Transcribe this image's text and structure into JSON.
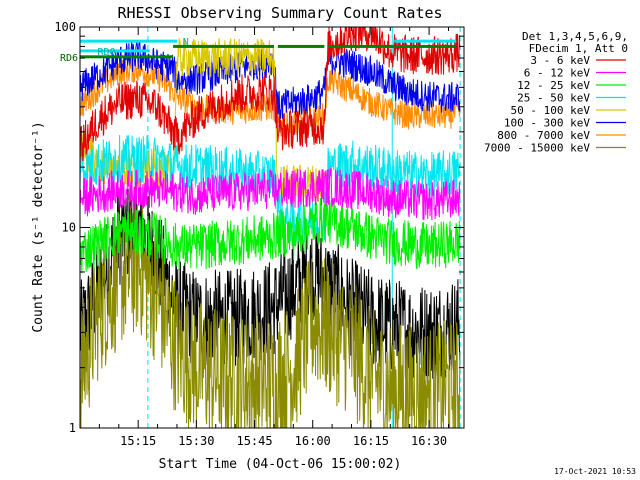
{
  "chart_data": {
    "type": "line",
    "title": "RHESSI Observing Summary Count Rates",
    "xlabel": "Start Time (04-Oct-06 15:00:02)",
    "ylabel": "Count Rate (s⁻¹ detector⁻¹)",
    "yscale": "log",
    "ylim": [
      1,
      100
    ],
    "xlim_minutes": [
      0,
      99
    ],
    "x_ticks": [
      {
        "t": 15,
        "label": "15:15"
      },
      {
        "t": 30,
        "label": "15:30"
      },
      {
        "t": 45,
        "label": "15:45"
      },
      {
        "t": 60,
        "label": "16:00"
      },
      {
        "t": 75,
        "label": "16:15"
      },
      {
        "t": 90,
        "label": "16:30"
      }
    ],
    "y_ticks": [
      {
        "v": 1,
        "label": "1"
      },
      {
        "v": 10,
        "label": "10"
      },
      {
        "v": 100,
        "label": "100"
      }
    ],
    "legend": {
      "position": "right",
      "header": [
        "Det 1,3,4,5,6,9,",
        "FDecim 1, Att 0"
      ]
    },
    "series": [
      {
        "name": "3 - 6 keV",
        "color": "#e00000",
        "x": [
          0,
          5,
          10,
          15,
          20,
          24,
          25,
          30,
          40,
          50,
          51,
          55,
          60,
          63,
          64,
          70,
          75,
          80,
          85,
          90,
          95,
          98
        ],
        "y": [
          25,
          35,
          42,
          44,
          40,
          30,
          28,
          36,
          46,
          48,
          30,
          31,
          32,
          32,
          80,
          95,
          95,
          75,
          72,
          72,
          72,
          75
        ]
      },
      {
        "name": "6 - 12 keV",
        "color": "#ff00ff",
        "x": [
          0,
          10,
          20,
          25,
          30,
          40,
          50,
          52,
          55,
          60,
          63,
          64,
          70,
          75,
          80,
          90,
          98
        ],
        "y": [
          14,
          15.5,
          15.5,
          15,
          14.5,
          15,
          15.5,
          15.5,
          15.5,
          16,
          16,
          16,
          15.5,
          15,
          14,
          13.5,
          14
        ]
      },
      {
        "name": "12 - 25 keV",
        "color": "#00ee00",
        "x": [
          0,
          10,
          20,
          25,
          30,
          40,
          50,
          52,
          55,
          60,
          63,
          64,
          70,
          75,
          80,
          90,
          98
        ],
        "y": [
          7.5,
          9.5,
          9,
          8,
          8,
          8.5,
          9,
          9.5,
          9,
          10.5,
          11,
          11,
          10,
          9,
          8.5,
          8,
          8.5
        ]
      },
      {
        "name": "25 - 50 keV",
        "color": "#00e5ee",
        "x": [
          0,
          10,
          20,
          25,
          30,
          40,
          50,
          52,
          55,
          60,
          63,
          64,
          70,
          75,
          80,
          90,
          98
        ],
        "y": [
          20,
          22,
          22,
          20,
          20,
          19,
          18,
          11,
          11,
          11,
          11,
          20,
          21,
          20,
          19,
          18,
          19
        ]
      },
      {
        "name": "50 - 100 keV",
        "color": "#d9c700",
        "x": [
          0,
          5,
          10,
          15,
          20,
          24,
          25,
          50,
          51,
          52,
          55,
          60,
          63
        ],
        "y": [
          26,
          20,
          20,
          19,
          20,
          18,
          70,
          70,
          16,
          16.5,
          16.5,
          16.5,
          16.5
        ]
      },
      {
        "name": "100 - 300 keV",
        "color": "#0000ee",
        "x": [
          0,
          5,
          10,
          15,
          20,
          24,
          25,
          30,
          40,
          50,
          51,
          55,
          60,
          63,
          64,
          70,
          75,
          80,
          85,
          90,
          95,
          98
        ],
        "y": [
          50,
          58,
          68,
          72,
          65,
          62,
          55,
          55,
          62,
          68,
          40,
          42,
          44,
          48,
          70,
          65,
          60,
          52,
          47,
          45,
          44,
          45
        ]
      },
      {
        "name": "800 - 7000 keV",
        "color": "#ff8c00",
        "x": [
          0,
          5,
          10,
          15,
          20,
          24,
          25,
          30,
          40,
          50,
          51,
          55,
          60,
          63,
          64,
          70,
          75,
          80,
          85,
          90,
          95,
          98
        ],
        "y": [
          40,
          50,
          60,
          62,
          56,
          48,
          45,
          40,
          38,
          40,
          32,
          33,
          34,
          36,
          55,
          48,
          42,
          38,
          36,
          36,
          36,
          38
        ]
      },
      {
        "name": "7000 - 15000 keV",
        "color": "#8b8b00",
        "x": [
          0,
          5,
          10,
          15,
          20,
          25,
          30,
          40,
          50,
          55,
          60,
          65,
          70,
          75,
          80,
          90,
          98
        ],
        "y": [
          1.8,
          4,
          5.5,
          6.5,
          4.5,
          2.5,
          2,
          1.7,
          1.7,
          2,
          3.5,
          3,
          2.5,
          1.8,
          1.6,
          1.5,
          1.6
        ]
      },
      {
        "name": "",
        "color": "#000000",
        "x": [
          0,
          5,
          10,
          15,
          20,
          25,
          30,
          40,
          50,
          55,
          60,
          65,
          70,
          75,
          80,
          90,
          98
        ],
        "y": [
          3,
          5,
          9,
          10,
          7,
          4,
          3.5,
          3.5,
          4,
          5,
          6,
          5,
          4,
          3.5,
          3.2,
          3,
          3.3
        ]
      }
    ],
    "flag_bars": [
      {
        "label": "N",
        "color": "#00e5ee",
        "segments": [
          [
            0,
            25
          ],
          [
            81,
            97
          ]
        ]
      },
      {
        "label": "RD0",
        "color": "#00e5ee",
        "segments": [
          [
            0,
            18
          ]
        ]
      },
      {
        "label": "RD6",
        "color": "#008000",
        "segments": [
          [
            0,
            24
          ]
        ]
      },
      {
        "label": "",
        "color": "#008000",
        "segments": [
          [
            24,
            50
          ],
          [
            51,
            63
          ],
          [
            64,
            97
          ]
        ]
      }
    ],
    "vertical_lines": [
      {
        "t": 0,
        "color": "#00e5ee",
        "style": "solid"
      },
      {
        "t": 17.5,
        "color": "#00e5ee",
        "style": "dashed"
      },
      {
        "t": 80.5,
        "color": "#00e5ee",
        "style": "solid"
      },
      {
        "t": 98,
        "color": "#00e5ee",
        "style": "dashed"
      }
    ]
  },
  "footer_timestamp": "17-Oct-2021 10:53"
}
